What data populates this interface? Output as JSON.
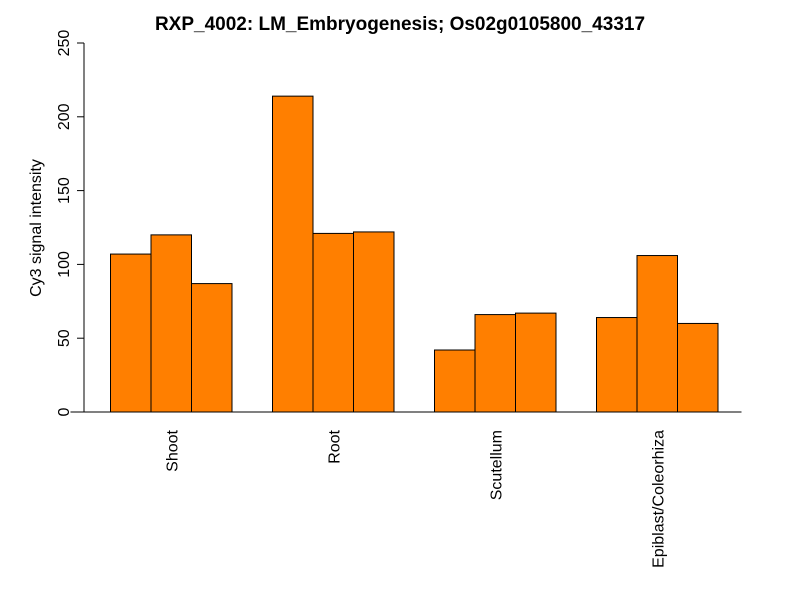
{
  "chart_data": {
    "type": "bar",
    "title": "RXP_4002: LM_Embryogenesis; Os02g0105800_43317",
    "xlabel": "",
    "ylabel": "Cy3 signal intensity",
    "ylim": [
      0,
      250
    ],
    "yticks": [
      0,
      50,
      100,
      150,
      200,
      250
    ],
    "bar_color": "#ff7f00",
    "grid": false,
    "legend": "none",
    "groups": [
      {
        "label": "Shoot",
        "values": [
          107,
          120,
          87
        ]
      },
      {
        "label": "Root",
        "values": [
          214,
          121,
          122
        ]
      },
      {
        "label": "Scutellum",
        "values": [
          42,
          66,
          67
        ]
      },
      {
        "label": "Epiblast/Coleorhiza",
        "values": [
          64,
          106,
          60
        ]
      }
    ]
  }
}
